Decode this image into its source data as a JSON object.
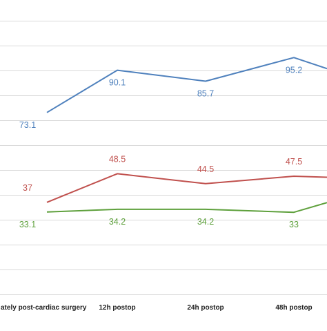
{
  "chart_data": {
    "type": "line",
    "title": "",
    "xlabel": "",
    "ylabel": "",
    "categories": [
      "Immediately post-cardiac surgery",
      "12h postop",
      "24h postop",
      "48h postop"
    ],
    "visible_category_labels": [
      "ately post-cardiac surgery",
      "12h postop",
      "24h postop",
      "48h postop"
    ],
    "ylim": [
      0,
      110
    ],
    "grid": true,
    "series": [
      {
        "color": "#4f81bd",
        "values": [
          73.1,
          90.1,
          85.7,
          95.2
        ],
        "labels": [
          "73.1",
          "90.1",
          "85.7",
          "95.2"
        ],
        "label_position": "below"
      },
      {
        "color": "#c0504d",
        "values": [
          37,
          48.5,
          44.5,
          47.5
        ],
        "labels": [
          "37",
          "48.5",
          "44.5",
          "47.5"
        ],
        "label_position": "above"
      },
      {
        "color": "#5ea03c",
        "values": [
          33.1,
          34.2,
          34.2,
          33
        ],
        "labels": [
          "33.1",
          "34.2",
          "34.2",
          "33"
        ],
        "label_position": "below"
      }
    ]
  }
}
